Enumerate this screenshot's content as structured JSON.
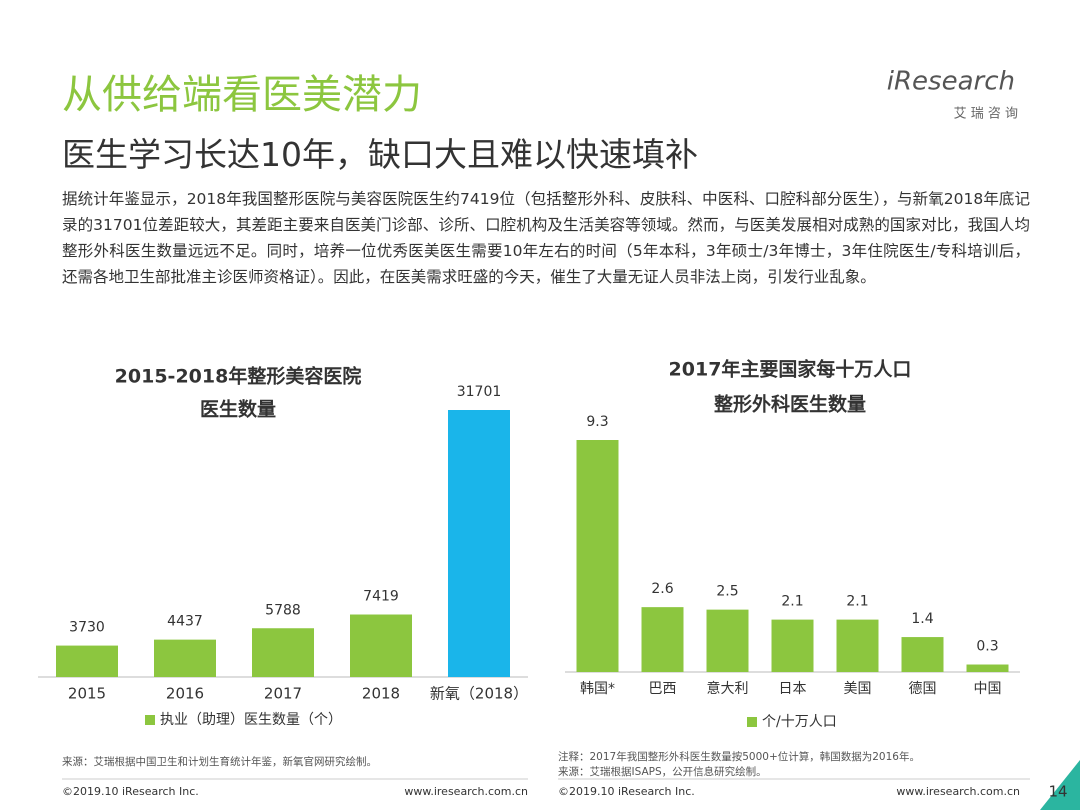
{
  "header": {
    "title": "从供给端看医美潜力",
    "subtitle": "医生学习长达10年，缺口大且难以快速填补",
    "logo": "iResearch",
    "logo_sub": "艾 瑞 咨 询"
  },
  "body": "据统计年鉴显示，2018年我国整形医院与美容医院医生约7419位（包括整形外科、皮肤科、中医科、口腔科部分医生），与新氧2018年底记录的31701位差距较大，其差距主要来自医美门诊部、诊所、口腔机构及生活美容等领域。然而，与医美发展相对成熟的国家对比，我国人均整形外科医生数量远远不足。同时，培养一位优秀医美医生需要10年左右的时间（5年本科，3年硕士/3年博士，3年住院医生/专科培训后，还需各地卫生部批准主诊医师资格证）。因此，在医美需求旺盛的今天，催生了大量无证人员非法上岗，引发行业乱象。",
  "chart_data": [
    {
      "type": "bar",
      "title": [
        "2015-2018年整形美容医院",
        "医生数量"
      ],
      "categories": [
        "2015",
        "2016",
        "2017",
        "2018",
        "新氧（2018）"
      ],
      "series": [
        {
          "name": "执业（助理）医生数量（个）",
          "color": "#8cc63f",
          "values": [
            3730,
            4437,
            5788,
            7419,
            31701
          ]
        }
      ],
      "bar_colors": [
        "#8cc63f",
        "#8cc63f",
        "#8cc63f",
        "#8cc63f",
        "#1ab5ea"
      ],
      "notes": [
        "来源：艾瑞根据中国卫生和计划生育统计年鉴，新氧官网研究绘制。"
      ]
    },
    {
      "type": "bar",
      "title": [
        "2017年主要国家每十万人口",
        "整形外科医生数量"
      ],
      "categories": [
        "韩国*",
        "巴西",
        "意大利",
        "日本",
        "美国",
        "德国",
        "中国"
      ],
      "series": [
        {
          "name": "个/十万人口",
          "color": "#8cc63f",
          "values": [
            9.3,
            2.6,
            2.5,
            2.1,
            2.1,
            1.4,
            0.3
          ]
        }
      ],
      "bar_colors": [
        "#8cc63f",
        "#8cc63f",
        "#8cc63f",
        "#8cc63f",
        "#8cc63f",
        "#8cc63f",
        "#8cc63f"
      ],
      "notes": [
        "注释：2017年我国整形外科医生数量按5000+位计算，韩国数据为2016年。",
        "来源：艾瑞根据ISAPS，公开信息研究绘制。"
      ]
    }
  ],
  "footer": {
    "copyright": "©2019.10 iResearch Inc.",
    "url": "www.iresearch.com.cn",
    "copyright_2": "©2019.10 iResearch Inc.",
    "url_2": "www.iresearch.com.cn"
  },
  "page_number": 14
}
